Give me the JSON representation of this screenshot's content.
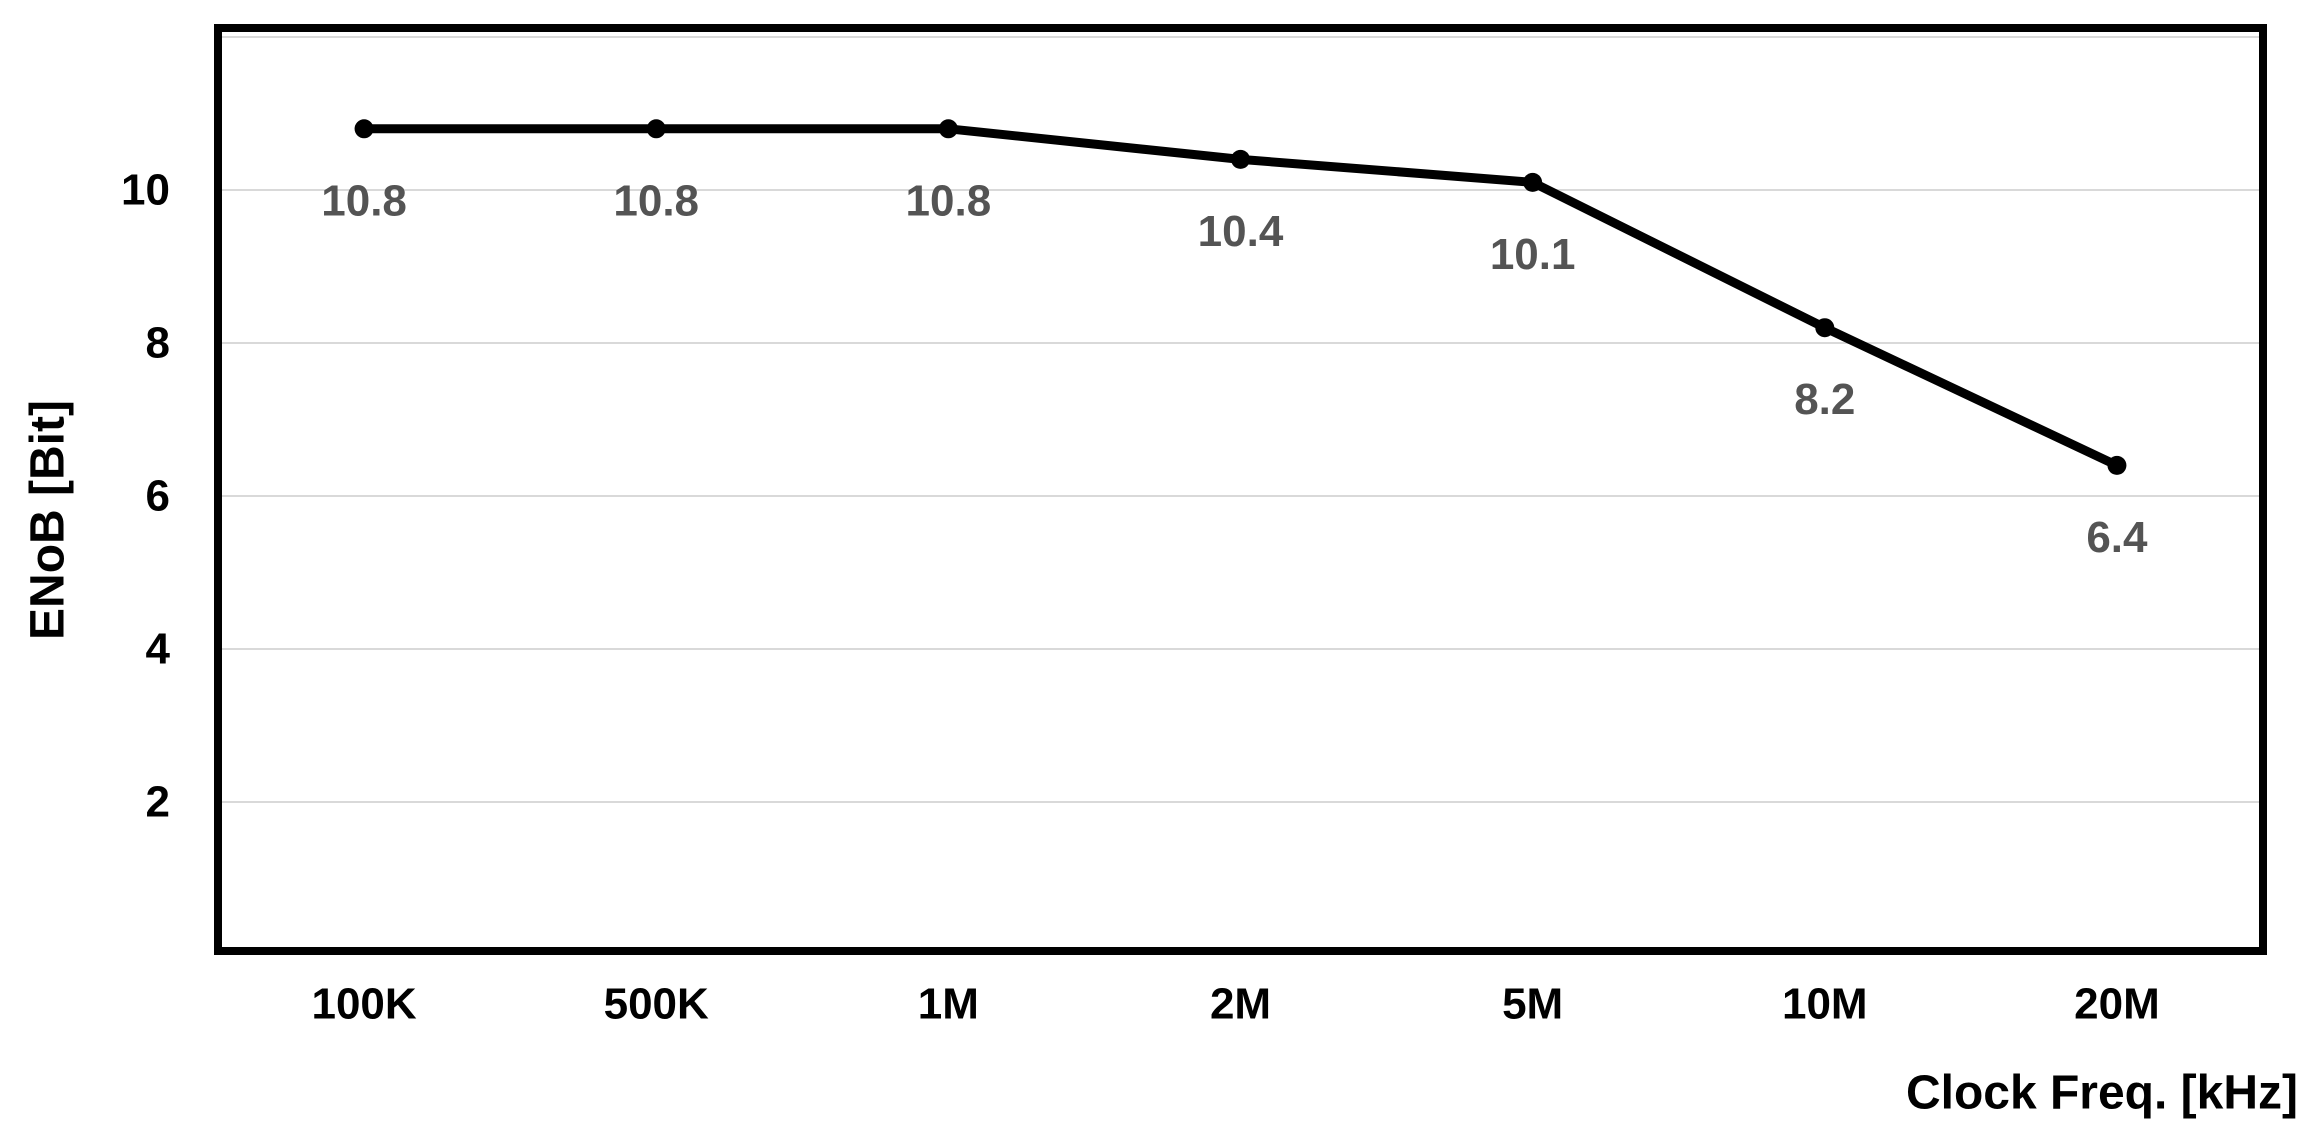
{
  "chart_data": {
    "type": "line",
    "categories": [
      "100K",
      "500K",
      "1M",
      "2M",
      "5M",
      "10M",
      "20M"
    ],
    "values": [
      10.8,
      10.8,
      10.8,
      10.4,
      10.1,
      8.2,
      6.4
    ],
    "data_labels": [
      "10.8",
      "10.8",
      "10.8",
      "10.4",
      "10.1",
      "8.2",
      "6.4"
    ],
    "title": "",
    "xlabel": "Clock Freq. [kHz]",
    "ylabel": "ENoB [Bit]",
    "ylim": [
      0,
      12
    ],
    "yticks": [
      2,
      4,
      6,
      8,
      10
    ],
    "ygridlines": [
      2,
      4,
      6,
      8,
      10,
      12
    ],
    "grid": "horizontal-only",
    "legend": "none",
    "series_name": "ENoB",
    "series_color": "#000000",
    "marker": "circle",
    "data_label_color": "#545454",
    "gridline_color": "#d9d9d9",
    "axis_border_color": "#000000",
    "background_color": "#ffffff"
  }
}
